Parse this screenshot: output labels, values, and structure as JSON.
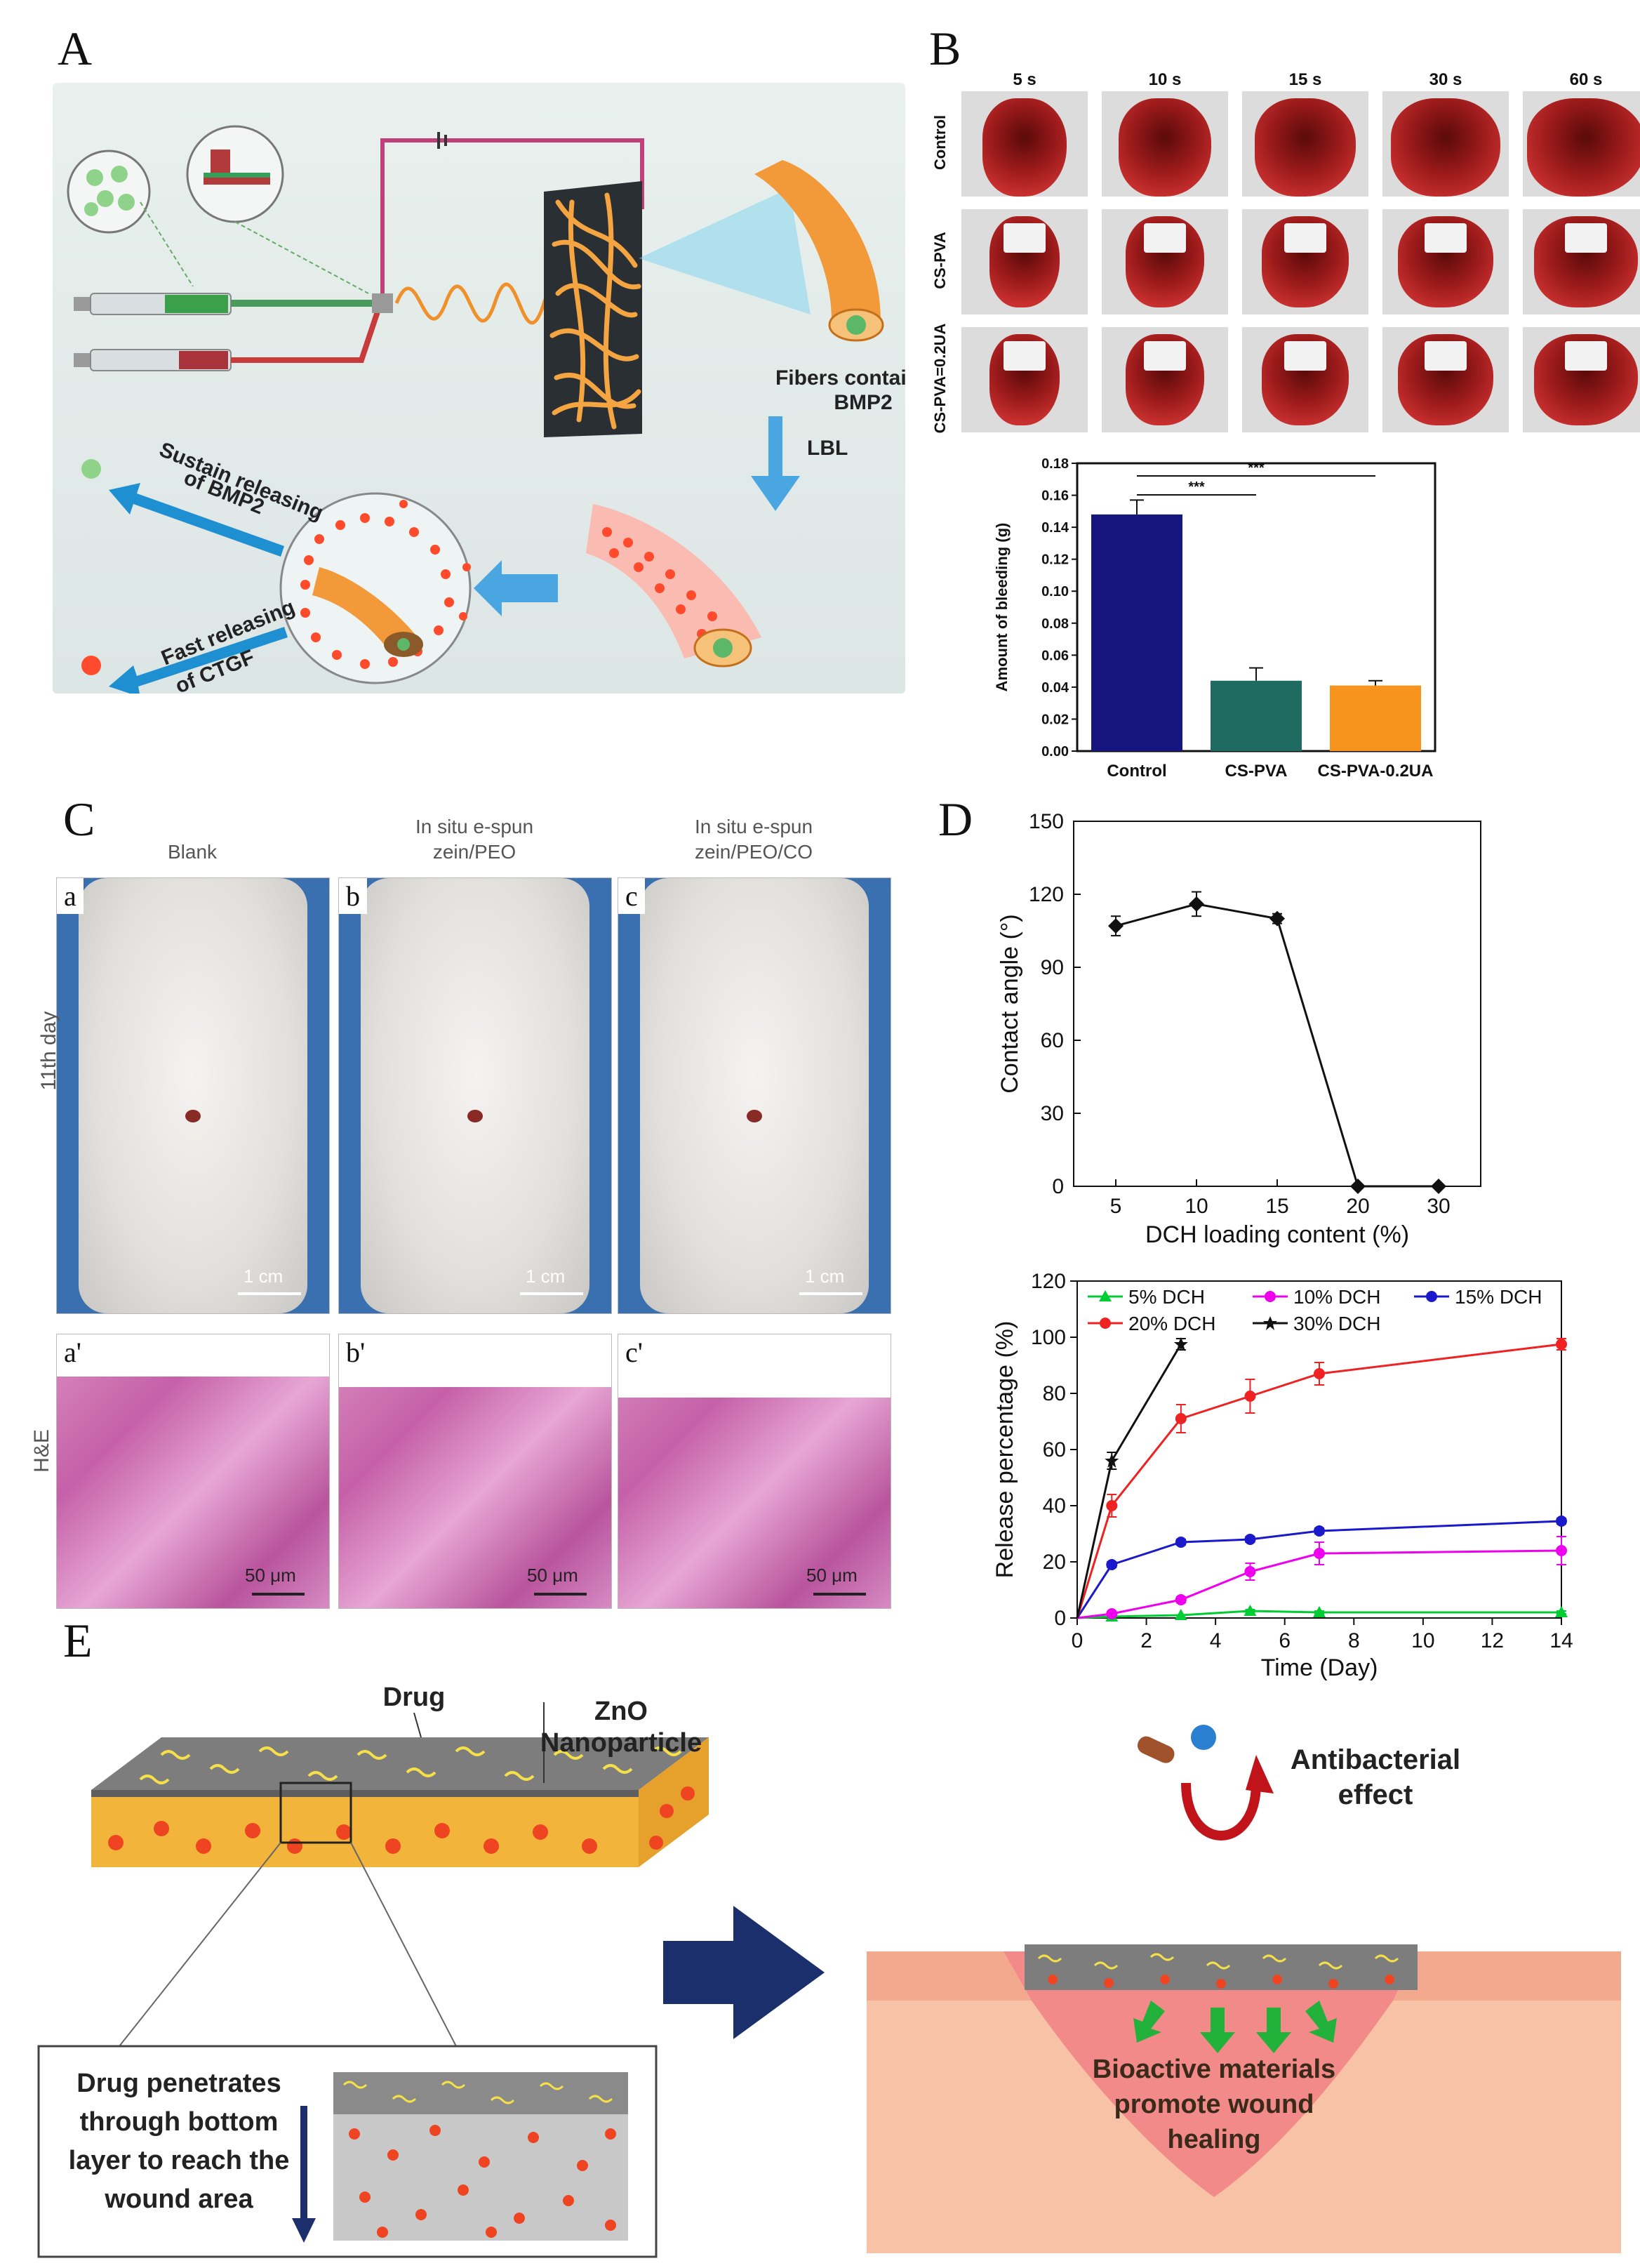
{
  "panels": {
    "A": "A",
    "B": "B",
    "C": "C",
    "D": "D",
    "E": "E"
  },
  "panel_a": {
    "fibers_label_1": "Fibers containing",
    "fibers_label_2": "BMP2",
    "lbl_label": "LBL",
    "sustain_1": "Sustain releasing",
    "sustain_2": "of BMP2",
    "fast_1": "Fast releasing",
    "fast_2": "of CTGF"
  },
  "panel_b_photos": {
    "times": [
      "5 s",
      "10 s",
      "15 s",
      "30 s",
      "60 s"
    ],
    "rows": [
      "Control",
      "CS-PVA",
      "CS-PVA=0.2UA"
    ]
  },
  "panel_c": {
    "columns": [
      "Blank",
      "In situ e-spun zein/PEO",
      "In situ e-spun zein/PEO/CO"
    ],
    "col_line1": [
      "",
      "In situ e-spun",
      "In situ e-spun"
    ],
    "col_line2": [
      "Blank",
      "zein/PEO",
      "zein/PEO/CO"
    ],
    "row_top": "11th day",
    "row_bottom": "H&E",
    "top_labels": [
      "a",
      "b",
      "c"
    ],
    "bottom_labels": [
      "a'",
      "b'",
      "c'"
    ],
    "scale_top": "1 cm",
    "scale_bottom": "50 μm"
  },
  "panel_e": {
    "drug": "Drug",
    "zno_1": "ZnO",
    "zno_2": "Nanoparticle",
    "penetrates": [
      "Drug penetrates",
      "through bottom",
      "layer to reach the",
      "wound area"
    ],
    "antibacterial_1": "Antibacterial",
    "antibacterial_2": "effect",
    "bioactive": [
      "Bioactive materials",
      "promote wound",
      "healing"
    ]
  },
  "chart_data": [
    {
      "type": "bar",
      "id": "bleeding",
      "categories": [
        "Control",
        "CS-PVA",
        "CS-PVA-0.2UA"
      ],
      "values": [
        0.148,
        0.044,
        0.041
      ],
      "errors": [
        0.009,
        0.008,
        0.003
      ],
      "colors": [
        "#16167e",
        "#1f6b62",
        "#f7941d"
      ],
      "ylabel": "Amount of bleeding (g)",
      "ylim": [
        0,
        0.18
      ],
      "yticks": [
        "0.00",
        "0.02",
        "0.04",
        "0.06",
        "0.08",
        "0.10",
        "0.12",
        "0.14",
        "0.16",
        "0.18"
      ],
      "significance": [
        "***",
        "***"
      ]
    },
    {
      "type": "line",
      "id": "contact",
      "x": [
        5,
        10,
        15,
        20,
        30
      ],
      "xticks": [
        "5",
        "10",
        "15",
        "20",
        "30"
      ],
      "values": [
        107,
        116,
        110,
        0,
        0
      ],
      "errors": [
        4,
        5,
        2,
        0,
        0
      ],
      "xlabel": "DCH loading content (%)",
      "ylabel": "Contact angle (°)",
      "ylim": [
        0,
        150
      ],
      "yticks": [
        "0",
        "30",
        "60",
        "90",
        "120",
        "150"
      ]
    },
    {
      "type": "line",
      "id": "release",
      "xlabel": "Time (Day)",
      "ylabel": "Release percentage  (%)",
      "xlim": [
        0,
        14
      ],
      "ylim": [
        0,
        120
      ],
      "xticks": [
        "0",
        "2",
        "4",
        "6",
        "8",
        "10",
        "12",
        "14"
      ],
      "yticks": [
        "0",
        "20",
        "40",
        "60",
        "80",
        "100",
        "120"
      ],
      "series": [
        {
          "name": "5% DCH",
          "color": "#00cc33",
          "marker": "triangle",
          "x": [
            0,
            1,
            3,
            5,
            7,
            14
          ],
          "values": [
            0,
            0.5,
            1,
            2.5,
            2,
            2
          ],
          "errors": [
            0,
            0,
            0,
            0.5,
            0.5,
            0.5
          ]
        },
        {
          "name": "10% DCH",
          "color": "#ee00ee",
          "marker": "circle",
          "x": [
            0,
            1,
            3,
            5,
            7,
            14
          ],
          "values": [
            0,
            1.5,
            6.5,
            16.5,
            23,
            24
          ],
          "errors": [
            0,
            0.5,
            1,
            3,
            4,
            5
          ]
        },
        {
          "name": "15% DCH",
          "color": "#1a1acc",
          "marker": "circle",
          "x": [
            0,
            1,
            3,
            5,
            7,
            14
          ],
          "values": [
            0,
            19,
            27,
            28,
            31,
            34.5
          ],
          "errors": [
            0,
            1,
            1,
            1,
            1,
            1
          ]
        },
        {
          "name": "20% DCH",
          "color": "#ee2222",
          "marker": "circle",
          "x": [
            0,
            1,
            3,
            5,
            7,
            14
          ],
          "values": [
            0,
            40,
            71,
            79,
            87,
            97.5
          ],
          "errors": [
            0,
            4,
            5,
            6,
            4,
            2
          ]
        },
        {
          "name": "30% DCH",
          "color": "#111111",
          "marker": "star",
          "x": [
            0,
            1,
            3
          ],
          "values": [
            0,
            56,
            97.5
          ],
          "errors": [
            0,
            3,
            2
          ]
        }
      ]
    }
  ]
}
